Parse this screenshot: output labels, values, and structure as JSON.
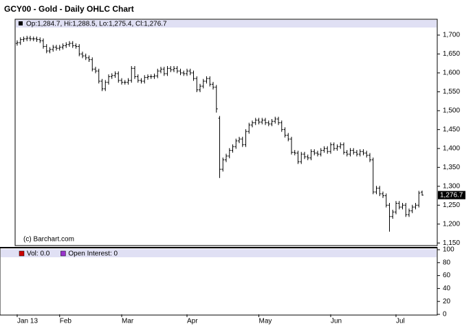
{
  "chart_data": {
    "type": "ohlc",
    "title": "GCY00 - Gold - Daily OHLC Chart",
    "ohlc_label": "Op:1,284.7, Hi:1,288.5, Lo:1,275.4, Cl:1,276.7",
    "last_label": "1,276.7",
    "copyright": "(c) Barchart.com",
    "color": "#000000",
    "categories": [
      "Jan 13",
      null,
      null,
      null,
      null,
      null,
      null,
      null,
      null,
      null,
      null,
      null,
      null,
      "Feb",
      null,
      null,
      null,
      null,
      null,
      null,
      null,
      null,
      null,
      null,
      null,
      null,
      null,
      null,
      null,
      null,
      null,
      null,
      "Mar",
      null,
      null,
      null,
      null,
      null,
      null,
      null,
      null,
      null,
      null,
      null,
      null,
      null,
      null,
      null,
      null,
      null,
      null,
      null,
      "Apr",
      null,
      null,
      null,
      null,
      null,
      null,
      null,
      null,
      null,
      null,
      null,
      null,
      null,
      null,
      null,
      null,
      null,
      null,
      null,
      null,
      null,
      "May",
      null,
      null,
      null,
      null,
      null,
      null,
      null,
      null,
      null,
      null,
      null,
      null,
      null,
      null,
      null,
      null,
      null,
      null,
      null,
      null,
      null,
      "Jun",
      null,
      null,
      null,
      null,
      null,
      null,
      null,
      null,
      null,
      null,
      null,
      null,
      null,
      null,
      null,
      null,
      null,
      null,
      null,
      "Jul",
      null,
      null,
      null,
      null,
      null,
      null,
      null,
      null
    ],
    "open": [
      1678,
      1680,
      1688,
      1690,
      1692,
      1690,
      1690,
      1688,
      1685,
      1670,
      1658,
      1662,
      1668,
      1665,
      1668,
      1672,
      1675,
      1678,
      1672,
      1670,
      1650,
      1645,
      1640,
      1635,
      1610,
      1605,
      1578,
      1558,
      1575,
      1590,
      1593,
      1598,
      1580,
      1575,
      1575,
      1580,
      1612,
      1590,
      1580,
      1578,
      1588,
      1590,
      1590,
      1592,
      1605,
      1610,
      1598,
      1612,
      1608,
      1612,
      1605,
      1600,
      1598,
      1605,
      1600,
      1585,
      1555,
      1565,
      1578,
      1585,
      1570,
      1562,
      1480,
      1345,
      1370,
      1380,
      1395,
      1405,
      1420,
      1425,
      1410,
      1445,
      1462,
      1468,
      1475,
      1470,
      1475,
      1468,
      1465,
      1472,
      1478,
      1468,
      1450,
      1435,
      1425,
      1390,
      1388,
      1365,
      1385,
      1378,
      1375,
      1392,
      1388,
      1385,
      1395,
      1400,
      1392,
      1410,
      1400,
      1405,
      1410,
      1390,
      1385,
      1395,
      1390,
      1385,
      1392,
      1388,
      1382,
      1370,
      1285,
      1295,
      1280,
      1275,
      1250,
      1220,
      1232,
      1255,
      1245,
      1250,
      1225,
      1235,
      1245,
      1250,
      1284.7
    ],
    "high": [
      1686,
      1694,
      1696,
      1698,
      1698,
      1696,
      1696,
      1694,
      1691,
      1676,
      1668,
      1674,
      1674,
      1674,
      1678,
      1681,
      1684,
      1684,
      1678,
      1676,
      1656,
      1651,
      1646,
      1641,
      1616,
      1611,
      1584,
      1581,
      1596,
      1599,
      1604,
      1604,
      1586,
      1581,
      1586,
      1618,
      1618,
      1596,
      1586,
      1594,
      1596,
      1596,
      1598,
      1611,
      1616,
      1616,
      1618,
      1618,
      1618,
      1618,
      1611,
      1606,
      1611,
      1611,
      1606,
      1591,
      1571,
      1584,
      1591,
      1591,
      1576,
      1568,
      1486,
      1376,
      1386,
      1401,
      1411,
      1426,
      1431,
      1431,
      1451,
      1468,
      1474,
      1481,
      1481,
      1481,
      1481,
      1474,
      1478,
      1484,
      1484,
      1474,
      1456,
      1441,
      1431,
      1396,
      1394,
      1391,
      1391,
      1384,
      1398,
      1398,
      1394,
      1401,
      1406,
      1406,
      1416,
      1416,
      1411,
      1416,
      1416,
      1396,
      1401,
      1401,
      1396,
      1398,
      1398,
      1394,
      1388,
      1376,
      1301,
      1301,
      1286,
      1281,
      1256,
      1238,
      1261,
      1261,
      1256,
      1256,
      1241,
      1251,
      1256,
      1288,
      1288.5
    ],
    "low": [
      1672,
      1674,
      1682,
      1684,
      1684,
      1684,
      1682,
      1679,
      1664,
      1652,
      1652,
      1656,
      1659,
      1659,
      1662,
      1666,
      1669,
      1666,
      1664,
      1644,
      1639,
      1634,
      1629,
      1604,
      1599,
      1572,
      1552,
      1552,
      1569,
      1584,
      1587,
      1574,
      1569,
      1569,
      1569,
      1574,
      1584,
      1574,
      1572,
      1572,
      1582,
      1584,
      1584,
      1586,
      1599,
      1592,
      1592,
      1602,
      1602,
      1599,
      1594,
      1592,
      1592,
      1594,
      1579,
      1549,
      1549,
      1559,
      1572,
      1564,
      1556,
      1495,
      1322,
      1339,
      1364,
      1374,
      1389,
      1399,
      1414,
      1404,
      1404,
      1439,
      1456,
      1462,
      1464,
      1464,
      1462,
      1459,
      1459,
      1466,
      1462,
      1444,
      1429,
      1419,
      1384,
      1382,
      1359,
      1359,
      1372,
      1369,
      1369,
      1382,
      1379,
      1379,
      1389,
      1386,
      1386,
      1394,
      1394,
      1399,
      1384,
      1379,
      1379,
      1384,
      1379,
      1379,
      1382,
      1376,
      1364,
      1279,
      1279,
      1274,
      1269,
      1244,
      1180,
      1214,
      1226,
      1239,
      1239,
      1219,
      1219,
      1229,
      1239,
      1244,
      1275.4
    ],
    "close": [
      1680,
      1688,
      1690,
      1692,
      1690,
      1690,
      1688,
      1685,
      1670,
      1658,
      1662,
      1668,
      1665,
      1668,
      1672,
      1675,
      1678,
      1672,
      1670,
      1650,
      1645,
      1640,
      1635,
      1610,
      1605,
      1578,
      1558,
      1575,
      1590,
      1593,
      1598,
      1580,
      1575,
      1575,
      1580,
      1612,
      1590,
      1580,
      1578,
      1588,
      1590,
      1590,
      1592,
      1605,
      1610,
      1598,
      1612,
      1608,
      1612,
      1605,
      1600,
      1598,
      1605,
      1600,
      1585,
      1555,
      1565,
      1578,
      1585,
      1570,
      1562,
      1505,
      1345,
      1370,
      1380,
      1395,
      1405,
      1420,
      1425,
      1410,
      1445,
      1462,
      1468,
      1475,
      1470,
      1475,
      1468,
      1465,
      1472,
      1478,
      1468,
      1450,
      1435,
      1425,
      1390,
      1388,
      1365,
      1385,
      1378,
      1375,
      1392,
      1388,
      1385,
      1395,
      1400,
      1392,
      1410,
      1400,
      1405,
      1410,
      1390,
      1385,
      1395,
      1390,
      1385,
      1392,
      1388,
      1382,
      1370,
      1285,
      1295,
      1280,
      1275,
      1250,
      1220,
      1232,
      1255,
      1245,
      1250,
      1225,
      1235,
      1245,
      1250,
      1282,
      1276.7
    ],
    "ylim": [
      1145,
      1720
    ],
    "yticks": [
      {
        "value": 1150,
        "label": "1,150"
      },
      {
        "value": 1200,
        "label": "1,200"
      },
      {
        "value": 1250,
        "label": "1,250"
      },
      {
        "value": 1300,
        "label": "1,300"
      },
      {
        "value": 1350,
        "label": "1,350"
      },
      {
        "value": 1400,
        "label": "1,400"
      },
      {
        "value": 1450,
        "label": "1,450"
      },
      {
        "value": 1500,
        "label": "1,500"
      },
      {
        "value": 1550,
        "label": "1,550"
      },
      {
        "value": 1600,
        "label": "1,600"
      },
      {
        "value": 1650,
        "label": "1,650"
      },
      {
        "value": 1700,
        "label": "1,700"
      }
    ],
    "volume_pane": {
      "legend": [
        {
          "name": "Vol: 0.0",
          "color": "#cc0000"
        },
        {
          "name": "Open Interest: 0",
          "color": "#9933cc"
        }
      ],
      "ylim": [
        0,
        100
      ],
      "yticks": [
        0,
        20,
        40,
        60,
        80,
        100
      ]
    }
  }
}
